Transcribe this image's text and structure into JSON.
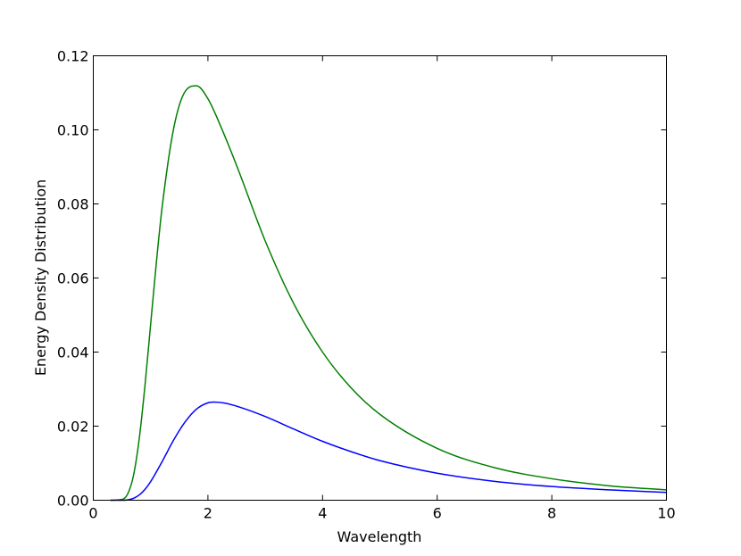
{
  "chart_data": {
    "type": "line",
    "xlabel": "Wavelength",
    "ylabel": "Energy Density Distribution",
    "xlim": [
      0,
      10
    ],
    "ylim": [
      0,
      0.12
    ],
    "xticks": [
      "0",
      "2",
      "4",
      "6",
      "8",
      "10"
    ],
    "yticks": [
      "0.00",
      "0.02",
      "0.04",
      "0.06",
      "0.08",
      "0.10",
      "0.12"
    ],
    "grid": false,
    "series": [
      {
        "color": "#008000",
        "x": [
          0.3,
          0.5,
          0.6,
          0.7,
          0.8,
          0.9,
          1.0,
          1.1,
          1.2,
          1.4,
          1.6,
          1.8,
          2.0,
          2.2,
          2.5,
          3.0,
          3.5,
          4.0,
          4.5,
          5.0,
          6.0,
          7.0,
          8.0,
          9.0,
          10.0
        ],
        "y": [
          0.0,
          0.0002,
          0.0017,
          0.0066,
          0.0164,
          0.0307,
          0.0474,
          0.0641,
          0.079,
          0.1002,
          0.1103,
          0.1119,
          0.1084,
          0.1018,
          0.0904,
          0.07,
          0.053,
          0.04,
          0.0303,
          0.0232,
          0.014,
          0.0088,
          0.0058,
          0.0039,
          0.0028
        ]
      },
      {
        "color": "#0000ff",
        "x": [
          0.3,
          0.5,
          0.6,
          0.7,
          0.8,
          0.9,
          1.0,
          1.2,
          1.4,
          1.6,
          1.8,
          2.0,
          2.1,
          2.3,
          2.6,
          3.0,
          3.5,
          4.0,
          4.5,
          5.0,
          6.0,
          7.0,
          8.0,
          9.0,
          10.0
        ],
        "y": [
          0.0,
          0.0,
          0.0001,
          0.0005,
          0.0014,
          0.0029,
          0.005,
          0.0104,
          0.0162,
          0.0211,
          0.0246,
          0.0263,
          0.0265,
          0.0262,
          0.0249,
          0.0226,
          0.0192,
          0.0159,
          0.0131,
          0.0107,
          0.0073,
          0.0051,
          0.0037,
          0.0028,
          0.0021
        ]
      }
    ]
  }
}
